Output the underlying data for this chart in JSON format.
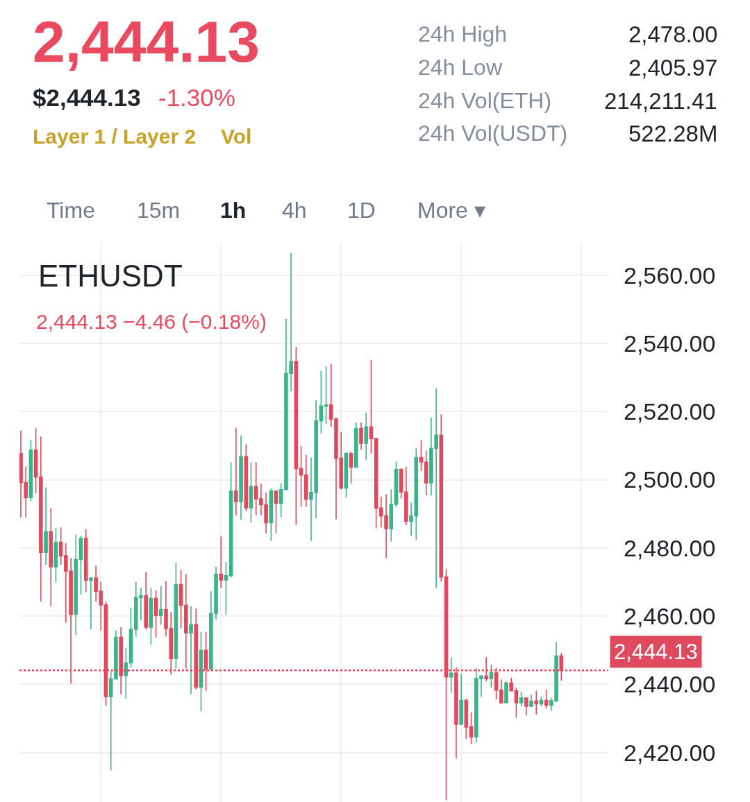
{
  "chart_data": {
    "type": "candlestick",
    "title": "ETHUSDT",
    "subtitle": "2,444.13 −4.46 (−0.18%)",
    "categories": [
      null,
      null,
      null,
      null,
      null,
      null,
      null,
      null,
      null,
      null,
      null,
      null,
      null,
      null,
      null,
      null,
      null,
      null,
      null,
      null,
      null,
      null,
      null,
      null,
      null,
      null,
      null,
      null,
      null,
      null,
      null,
      null,
      null,
      null,
      null,
      null,
      null,
      null,
      null,
      null,
      null,
      null,
      null,
      null,
      null,
      null,
      null,
      null,
      null,
      null,
      null,
      null,
      null,
      null,
      null,
      null,
      null,
      null,
      null,
      null,
      null,
      null,
      null,
      null,
      null,
      null,
      null,
      null,
      null,
      null,
      null,
      null,
      null,
      null,
      null,
      null,
      null,
      null,
      null,
      null,
      null,
      null,
      null,
      null,
      null,
      null,
      null,
      null,
      null,
      null,
      null,
      null,
      null,
      null,
      null,
      null,
      null,
      null,
      null,
      null,
      null,
      null,
      null,
      null,
      null,
      null,
      null,
      null,
      null
    ],
    "ohlc": [
      [
        2507.7,
        2514.4,
        2489.0,
        2499.2
      ],
      [
        2499.2,
        2503.9,
        2489.0,
        2494.8
      ],
      [
        2494.8,
        2511.7,
        2493.8,
        2508.7
      ],
      [
        2508.7,
        2515.2,
        2496.1,
        2500.8
      ],
      [
        2500.8,
        2512.7,
        2464.3,
        2478.7
      ],
      [
        2478.7,
        2497.8,
        2475.1,
        2484.8
      ],
      [
        2484.8,
        2491.7,
        2462.9,
        2474.5
      ],
      [
        2474.5,
        2485.8,
        2469.9,
        2481.7
      ],
      [
        2481.7,
        2486.0,
        2475.1,
        2477.7
      ],
      [
        2477.7,
        2481.4,
        2458.1,
        2473.2
      ],
      [
        2473.2,
        2477.0,
        2440.2,
        2460.6
      ],
      [
        2460.6,
        2483.9,
        2454.5,
        2476.6
      ],
      [
        2476.6,
        2483.6,
        2466.3,
        2482.8
      ],
      [
        2482.8,
        2485.5,
        2467.0,
        2470.5
      ],
      [
        2470.5,
        2471.4,
        2456.2,
        2471.2
      ],
      [
        2471.2,
        2474.8,
        2464.3,
        2467.3
      ],
      [
        2467.3,
        2470.1,
        2455.8,
        2463.3
      ],
      [
        2463.3,
        2464.3,
        2433.8,
        2436.4
      ],
      [
        2436.4,
        2444.0,
        2414.8,
        2441.6
      ],
      [
        2441.6,
        2455.8,
        2441.5,
        2453.8
      ],
      [
        2453.8,
        2456.8,
        2437.1,
        2442.6
      ],
      [
        2442.6,
        2450.7,
        2435.8,
        2446.3
      ],
      [
        2446.3,
        2462.5,
        2444.9,
        2456.1
      ],
      [
        2456.1,
        2470.0,
        2454.1,
        2465.5
      ],
      [
        2465.5,
        2468.3,
        2458.8,
        2466.0
      ],
      [
        2466.0,
        2473.0,
        2456.1,
        2456.8
      ],
      [
        2456.8,
        2468.3,
        2451.7,
        2465.2
      ],
      [
        2465.2,
        2467.6,
        2453.7,
        2460.2
      ],
      [
        2460.2,
        2468.8,
        2457.5,
        2461.9
      ],
      [
        2461.9,
        2470.3,
        2454.1,
        2456.4
      ],
      [
        2456.4,
        2461.2,
        2442.9,
        2447.6
      ],
      [
        2447.6,
        2475.8,
        2444.6,
        2469.3
      ],
      [
        2469.3,
        2473.5,
        2456.4,
        2463.2
      ],
      [
        2463.2,
        2472.4,
        2444.6,
        2455.1
      ],
      [
        2455.1,
        2462.9,
        2437.1,
        2457.5
      ],
      [
        2457.5,
        2462.2,
        2438.5,
        2439.2
      ],
      [
        2439.2,
        2455.4,
        2432.1,
        2450.0
      ],
      [
        2450.0,
        2455.4,
        2438.1,
        2444.6
      ],
      [
        2444.6,
        2467.3,
        2444.0,
        2460.8
      ],
      [
        2460.8,
        2474.5,
        2459.0,
        2472.3
      ],
      [
        2472.3,
        2483.4,
        2468.3,
        2470.6
      ],
      [
        2470.6,
        2475.9,
        2460.4,
        2471.9
      ],
      [
        2471.9,
        2505.1,
        2471.4,
        2496.7
      ],
      [
        2496.7,
        2515.2,
        2489.6,
        2493.6
      ],
      [
        2493.6,
        2513.0,
        2488.3,
        2506.8
      ],
      [
        2506.8,
        2510.4,
        2490.9,
        2491.8
      ],
      [
        2491.8,
        2505.1,
        2487.4,
        2498.0
      ],
      [
        2498.0,
        2505.1,
        2489.6,
        2494.4
      ],
      [
        2494.4,
        2498.9,
        2489.6,
        2492.7
      ],
      [
        2492.7,
        2496.2,
        2484.3,
        2487.4
      ],
      [
        2487.4,
        2497.5,
        2482.1,
        2496.7
      ],
      [
        2496.7,
        2496.7,
        2484.3,
        2493.1
      ],
      [
        2493.1,
        2498.9,
        2489.1,
        2497.1
      ],
      [
        2497.1,
        2547.1,
        2497.1,
        2531.2
      ],
      [
        2531.2,
        2566.6,
        2525.9,
        2534.7
      ],
      [
        2534.7,
        2539.0,
        2486.8,
        2503.3
      ],
      [
        2503.3,
        2509.9,
        2492.2,
        2501.4
      ],
      [
        2501.4,
        2507.3,
        2492.1,
        2494.3
      ],
      [
        2494.3,
        2506.5,
        2482.1,
        2496.3
      ],
      [
        2496.3,
        2523.4,
        2488.7,
        2517.3
      ],
      [
        2517.3,
        2531.9,
        2513.6,
        2521.6
      ],
      [
        2521.6,
        2533.3,
        2516.3,
        2522.0
      ],
      [
        2522.0,
        2534.0,
        2515.5,
        2517.8
      ],
      [
        2517.8,
        2518.2,
        2488.4,
        2506.3
      ],
      [
        2506.3,
        2514.1,
        2497.2,
        2497.6
      ],
      [
        2497.6,
        2508.0,
        2494.9,
        2507.7
      ],
      [
        2507.7,
        2508.3,
        2498.9,
        2503.7
      ],
      [
        2503.7,
        2516.8,
        2503.7,
        2515.0
      ],
      [
        2515.0,
        2516.8,
        2508.8,
        2510.7
      ],
      [
        2510.7,
        2519.7,
        2505.8,
        2515.5
      ],
      [
        2515.5,
        2535.1,
        2507.7,
        2512.1
      ],
      [
        2512.1,
        2512.1,
        2485.7,
        2491.7
      ],
      [
        2491.7,
        2495.1,
        2486.0,
        2489.4
      ],
      [
        2489.4,
        2495.8,
        2477.0,
        2485.7
      ],
      [
        2485.7,
        2497.2,
        2481.9,
        2492.8
      ],
      [
        2492.8,
        2505.3,
        2492.0,
        2503.0
      ],
      [
        2503.0,
        2503.4,
        2494.5,
        2496.4
      ],
      [
        2496.4,
        2503.8,
        2486.7,
        2487.8
      ],
      [
        2487.8,
        2493.3,
        2483.6,
        2489.4
      ],
      [
        2489.4,
        2509.2,
        2482.4,
        2506.5
      ],
      [
        2506.5,
        2511.6,
        2502.6,
        2505.2
      ],
      [
        2505.2,
        2508.5,
        2495.4,
        2499.1
      ],
      [
        2499.1,
        2518.2,
        2495.4,
        2509.2
      ],
      [
        2509.2,
        2526.8,
        2468.2,
        2513.1
      ],
      [
        2513.1,
        2519.2,
        2470.2,
        2471.5
      ],
      [
        2471.5,
        2473.8,
        2406.0,
        2442.2
      ],
      [
        2442.2,
        2447.9,
        2437.5,
        2443.3
      ],
      [
        2443.3,
        2445.0,
        2418.2,
        2428.3
      ],
      [
        2428.3,
        2443.1,
        2428.3,
        2435.3
      ],
      [
        2435.3,
        2435.7,
        2424.0,
        2427.5
      ],
      [
        2427.5,
        2431.8,
        2422.5,
        2424.6
      ],
      [
        2424.6,
        2444.8,
        2422.9,
        2441.7
      ],
      [
        2441.7,
        2442.7,
        2436.4,
        2442.4
      ],
      [
        2442.4,
        2448.0,
        2440.9,
        2441.7
      ],
      [
        2441.7,
        2445.8,
        2439.0,
        2443.4
      ],
      [
        2443.4,
        2444.8,
        2435.6,
        2438.3
      ],
      [
        2438.3,
        2441.4,
        2434.3,
        2434.6
      ],
      [
        2434.6,
        2440.9,
        2434.6,
        2440.4
      ],
      [
        2440.4,
        2441.9,
        2437.9,
        2438.1
      ],
      [
        2438.1,
        2439.0,
        2430.2,
        2434.6
      ],
      [
        2434.6,
        2437.9,
        2433.6,
        2436.0
      ],
      [
        2436.0,
        2436.0,
        2430.9,
        2433.6
      ],
      [
        2433.6,
        2437.0,
        2433.4,
        2435.1
      ],
      [
        2435.1,
        2438.1,
        2431.2,
        2434.3
      ],
      [
        2434.3,
        2436.3,
        2433.6,
        2435.3
      ],
      [
        2435.3,
        2438.5,
        2432.9,
        2433.9
      ],
      [
        2433.9,
        2436.1,
        2432.2,
        2435.2
      ],
      [
        2435.2,
        2452.4,
        2434.8,
        2448.3
      ],
      [
        2448.3,
        2449.2,
        2441.1,
        2444.1
      ]
    ],
    "colors": [
      "#e04a5e",
      "#e04a5e",
      "#3bb489",
      "#e04a5e",
      "#e04a5e",
      "#3bb489",
      "#e04a5e",
      "#3bb489",
      "#e04a5e",
      "#e04a5e",
      "#e04a5e",
      "#3bb489",
      "#3bb489",
      "#e04a5e",
      "#3bb489",
      "#e04a5e",
      "#e04a5e",
      "#e04a5e",
      "#3bb489",
      "#3bb489",
      "#e04a5e",
      "#3bb489",
      "#3bb489",
      "#3bb489",
      "#3bb489",
      "#e04a5e",
      "#3bb489",
      "#e04a5e",
      "#3bb489",
      "#e04a5e",
      "#e04a5e",
      "#3bb489",
      "#e04a5e",
      "#e04a5e",
      "#3bb489",
      "#e04a5e",
      "#3bb489",
      "#e04a5e",
      "#3bb489",
      "#3bb489",
      "#e04a5e",
      "#3bb489",
      "#3bb489",
      "#e04a5e",
      "#3bb489",
      "#e04a5e",
      "#3bb489",
      "#e04a5e",
      "#e04a5e",
      "#e04a5e",
      "#3bb489",
      "#e04a5e",
      "#3bb489",
      "#3bb489",
      "#3bb489",
      "#e04a5e",
      "#e04a5e",
      "#e04a5e",
      "#3bb489",
      "#3bb489",
      "#3bb489",
      "#3bb489",
      "#e04a5e",
      "#e04a5e",
      "#e04a5e",
      "#3bb489",
      "#e04a5e",
      "#3bb489",
      "#e04a5e",
      "#3bb489",
      "#e04a5e",
      "#e04a5e",
      "#e04a5e",
      "#e04a5e",
      "#3bb489",
      "#3bb489",
      "#e04a5e",
      "#e04a5e",
      "#3bb489",
      "#3bb489",
      "#e04a5e",
      "#e04a5e",
      "#3bb489",
      "#3bb489",
      "#e04a5e",
      "#e04a5e",
      "#3bb489",
      "#e04a5e",
      "#3bb489",
      "#e04a5e",
      "#e04a5e",
      "#3bb489",
      "#3bb489",
      "#e04a5e",
      "#3bb489",
      "#e04a5e",
      "#e04a5e",
      "#3bb489",
      "#e04a5e",
      "#e04a5e",
      "#3bb489",
      "#e04a5e",
      "#3bb489",
      "#e04a5e",
      "#3bb489",
      "#e04a5e",
      "#3bb489",
      "#3bb489",
      "#e04a5e"
    ],
    "ylim": [
      2405.5,
      2569.5
    ],
    "yticks": [
      {
        "value": 2420,
        "label": "2,420.00"
      },
      {
        "value": 2440,
        "label": "2,440.00"
      },
      {
        "value": 2460,
        "label": "2,460.00"
      },
      {
        "value": 2480,
        "label": "2,480.00"
      },
      {
        "value": 2500,
        "label": "2,500.00"
      },
      {
        "value": 2520,
        "label": "2,520.00"
      },
      {
        "value": 2540,
        "label": "2,540.00"
      },
      {
        "value": 2560,
        "label": "2,560.00"
      }
    ],
    "grid": true,
    "tick_labels": "y",
    "ref_lines": [
      {
        "axis": "y",
        "value": 2444.13,
        "label": "2,444.13",
        "color": "#e04a5e",
        "line_style": "dotted"
      }
    ],
    "annotations": [
      "2,444.13",
      "$2,444.13",
      "-1.30%",
      "Layer 1 / Layer 2",
      "Vol",
      "24h High",
      "2,478.00",
      "24h Low",
      "2,405.97",
      "24h Vol(ETH)",
      "214,211.41",
      "24h Vol(USDT)",
      "522.28M",
      "Time",
      "15m",
      "1h",
      "4h",
      "1D",
      "More ▾"
    ]
  }
}
